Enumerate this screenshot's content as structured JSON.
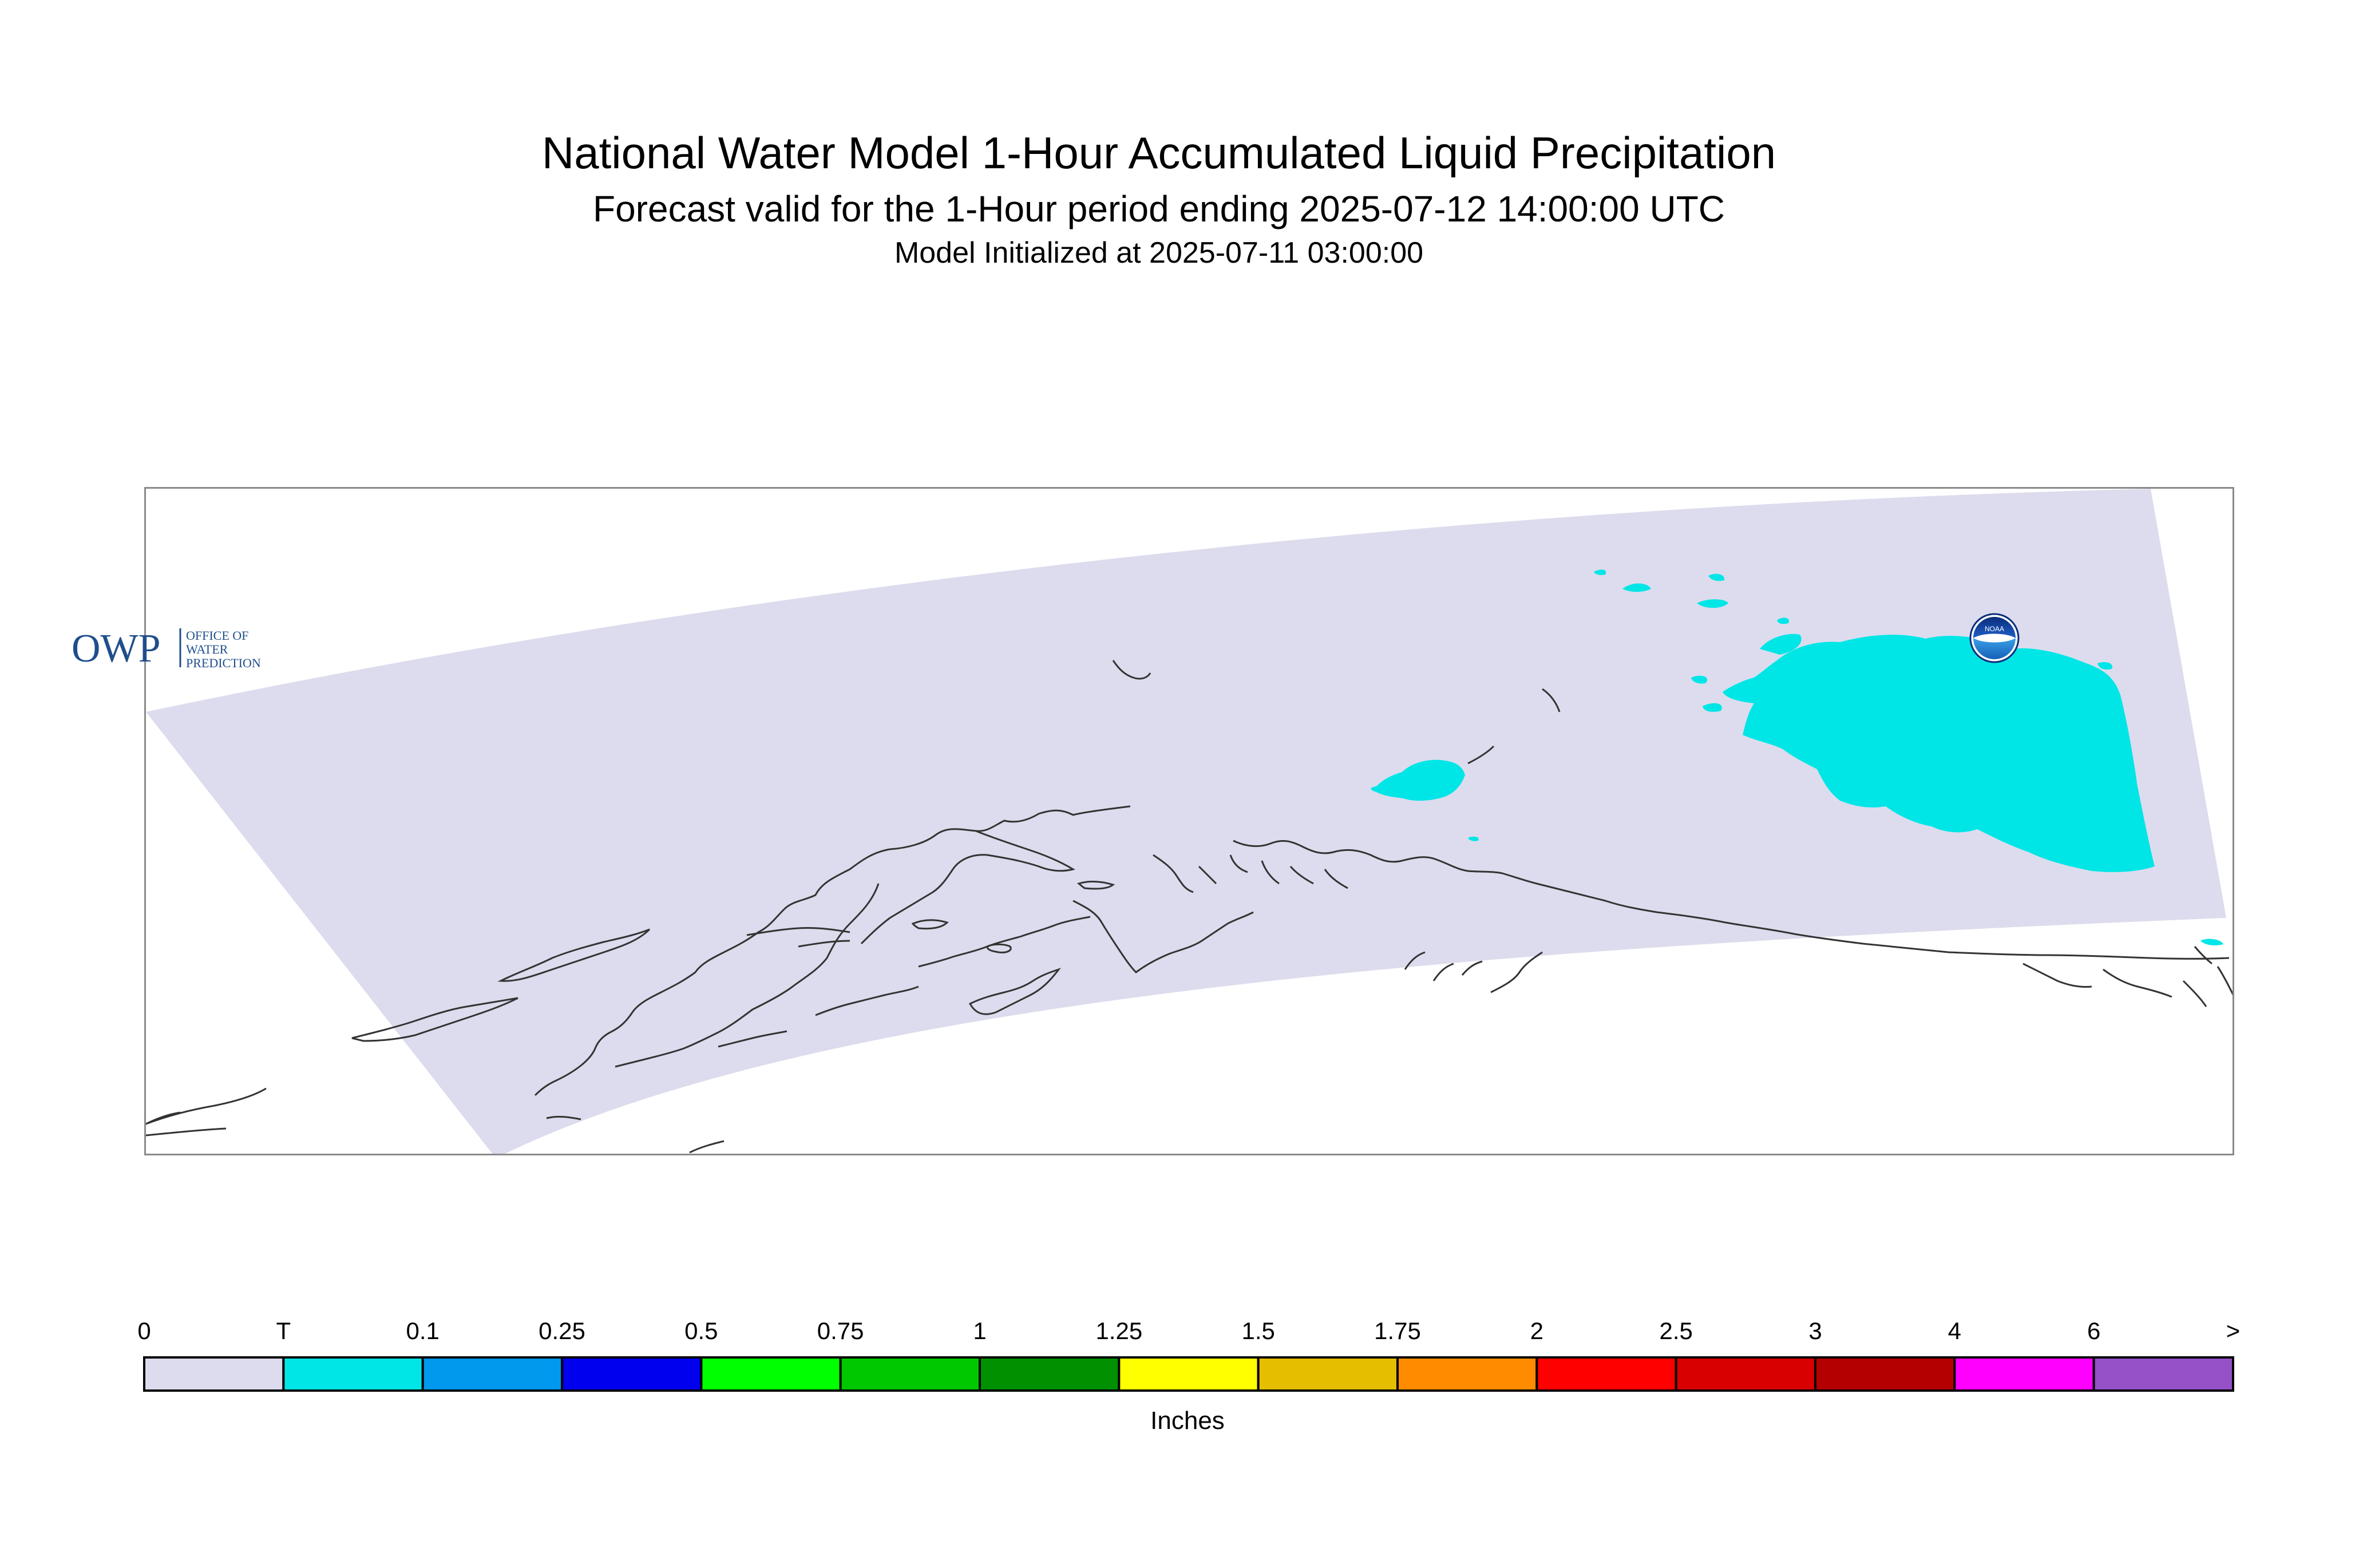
{
  "header": {
    "title": "National Water Model 1-Hour Accumulated Liquid Precipitation",
    "subtitle": "Forecast valid for the 1-Hour period ending 2025-07-12 14:00:00 UTC",
    "initialized": "Model Initialized at 2025-07-11 03:00:00"
  },
  "map": {
    "region": "Alaska",
    "domain_fill_color": "#DCDCEE",
    "precip_color": "#00E6E6",
    "coast_color": "#333333",
    "owp_logo": {
      "mark": "OWP",
      "text_lines": [
        "OFFICE OF",
        "WATER",
        "PREDICTION"
      ],
      "color": "#1f4e8c"
    },
    "noaa_logo": {
      "text": "NOAA",
      "icon": "noaa-seal-icon"
    }
  },
  "legend": {
    "unit": "Inches",
    "tick_labels": [
      "0",
      "T",
      "0.1",
      "0.25",
      "0.5",
      "0.75",
      "1",
      "1.25",
      "1.5",
      "1.75",
      "2",
      "2.5",
      "3",
      "4",
      "6",
      ">"
    ],
    "colors": [
      "#DCDCEE",
      "#00E6E6",
      "#0099EE",
      "#0000EE",
      "#00FF00",
      "#00C800",
      "#009000",
      "#FFFF00",
      "#E6BE00",
      "#FF8C00",
      "#FF0000",
      "#D80000",
      "#B40000",
      "#FF00FF",
      "#9650C8"
    ]
  }
}
